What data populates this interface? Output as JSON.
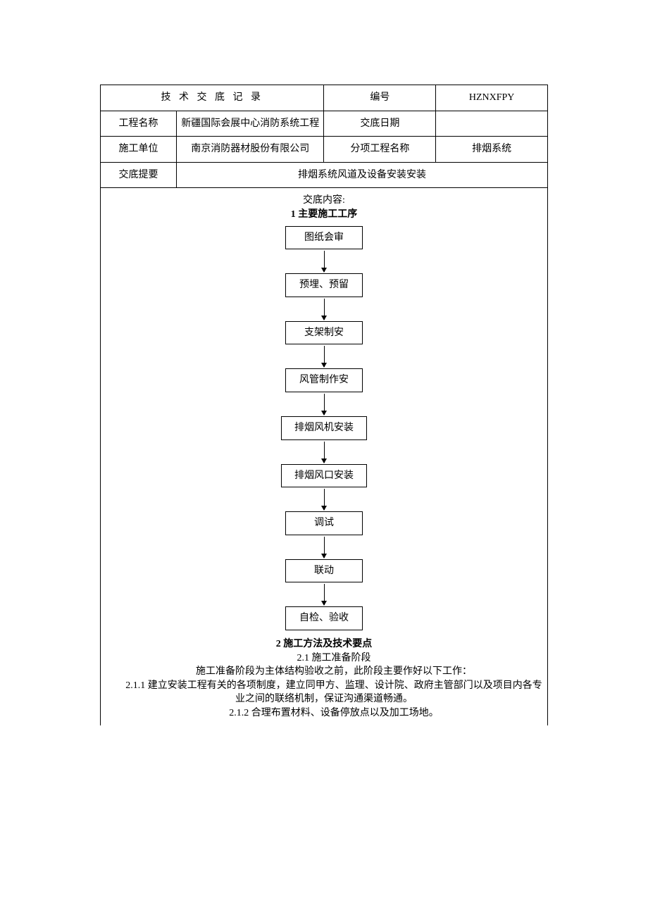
{
  "header": {
    "title": "技 术 交 底 记 录",
    "number_label": "编号",
    "number_value": "HZNXFPY",
    "project_label": "工程名称",
    "project_value": "新疆国际会展中心消防系统工程",
    "date_label": "交底日期",
    "date_value": "",
    "unit_label": "施工单位",
    "unit_value": "南京消防器材股份有限公司",
    "subproject_label": "分项工程名称",
    "subproject_value": "排烟系统",
    "summary_label": "交底提要",
    "summary_value": "排烟系统风道及设备安装安装"
  },
  "content_label": "交底内容:",
  "section1_title": "1 主要施工工序",
  "flow": {
    "steps": [
      "图纸会审",
      "预埋、预留",
      "支架制安",
      "风管制作安",
      "排烟风机安装",
      "排烟风口安装",
      "调试",
      "联动",
      "自检、验收"
    ]
  },
  "section2_title": "2 施工方法及技术要点",
  "body": {
    "p1": "2.1 施工准备阶段",
    "p2": "施工准备阶段为主体结构验收之前，此阶段主要作好以下工作：",
    "p3": "2.1.1 建立安装工程有关的各项制度，建立同甲方、监理、设计院、政府主管部门以及项目内各专业之间的联络机制，保证沟通渠道畅通。",
    "p4": "2.1.2 合理布置材料、设备停放点以及加工场地。"
  },
  "style": {
    "font_size_pt": 10.5,
    "heading_weight": "bold",
    "text_color": "#000000",
    "border_color": "#000000",
    "background_color": "#ffffff",
    "col_widths_pct": [
      17,
      33,
      25,
      25
    ]
  }
}
